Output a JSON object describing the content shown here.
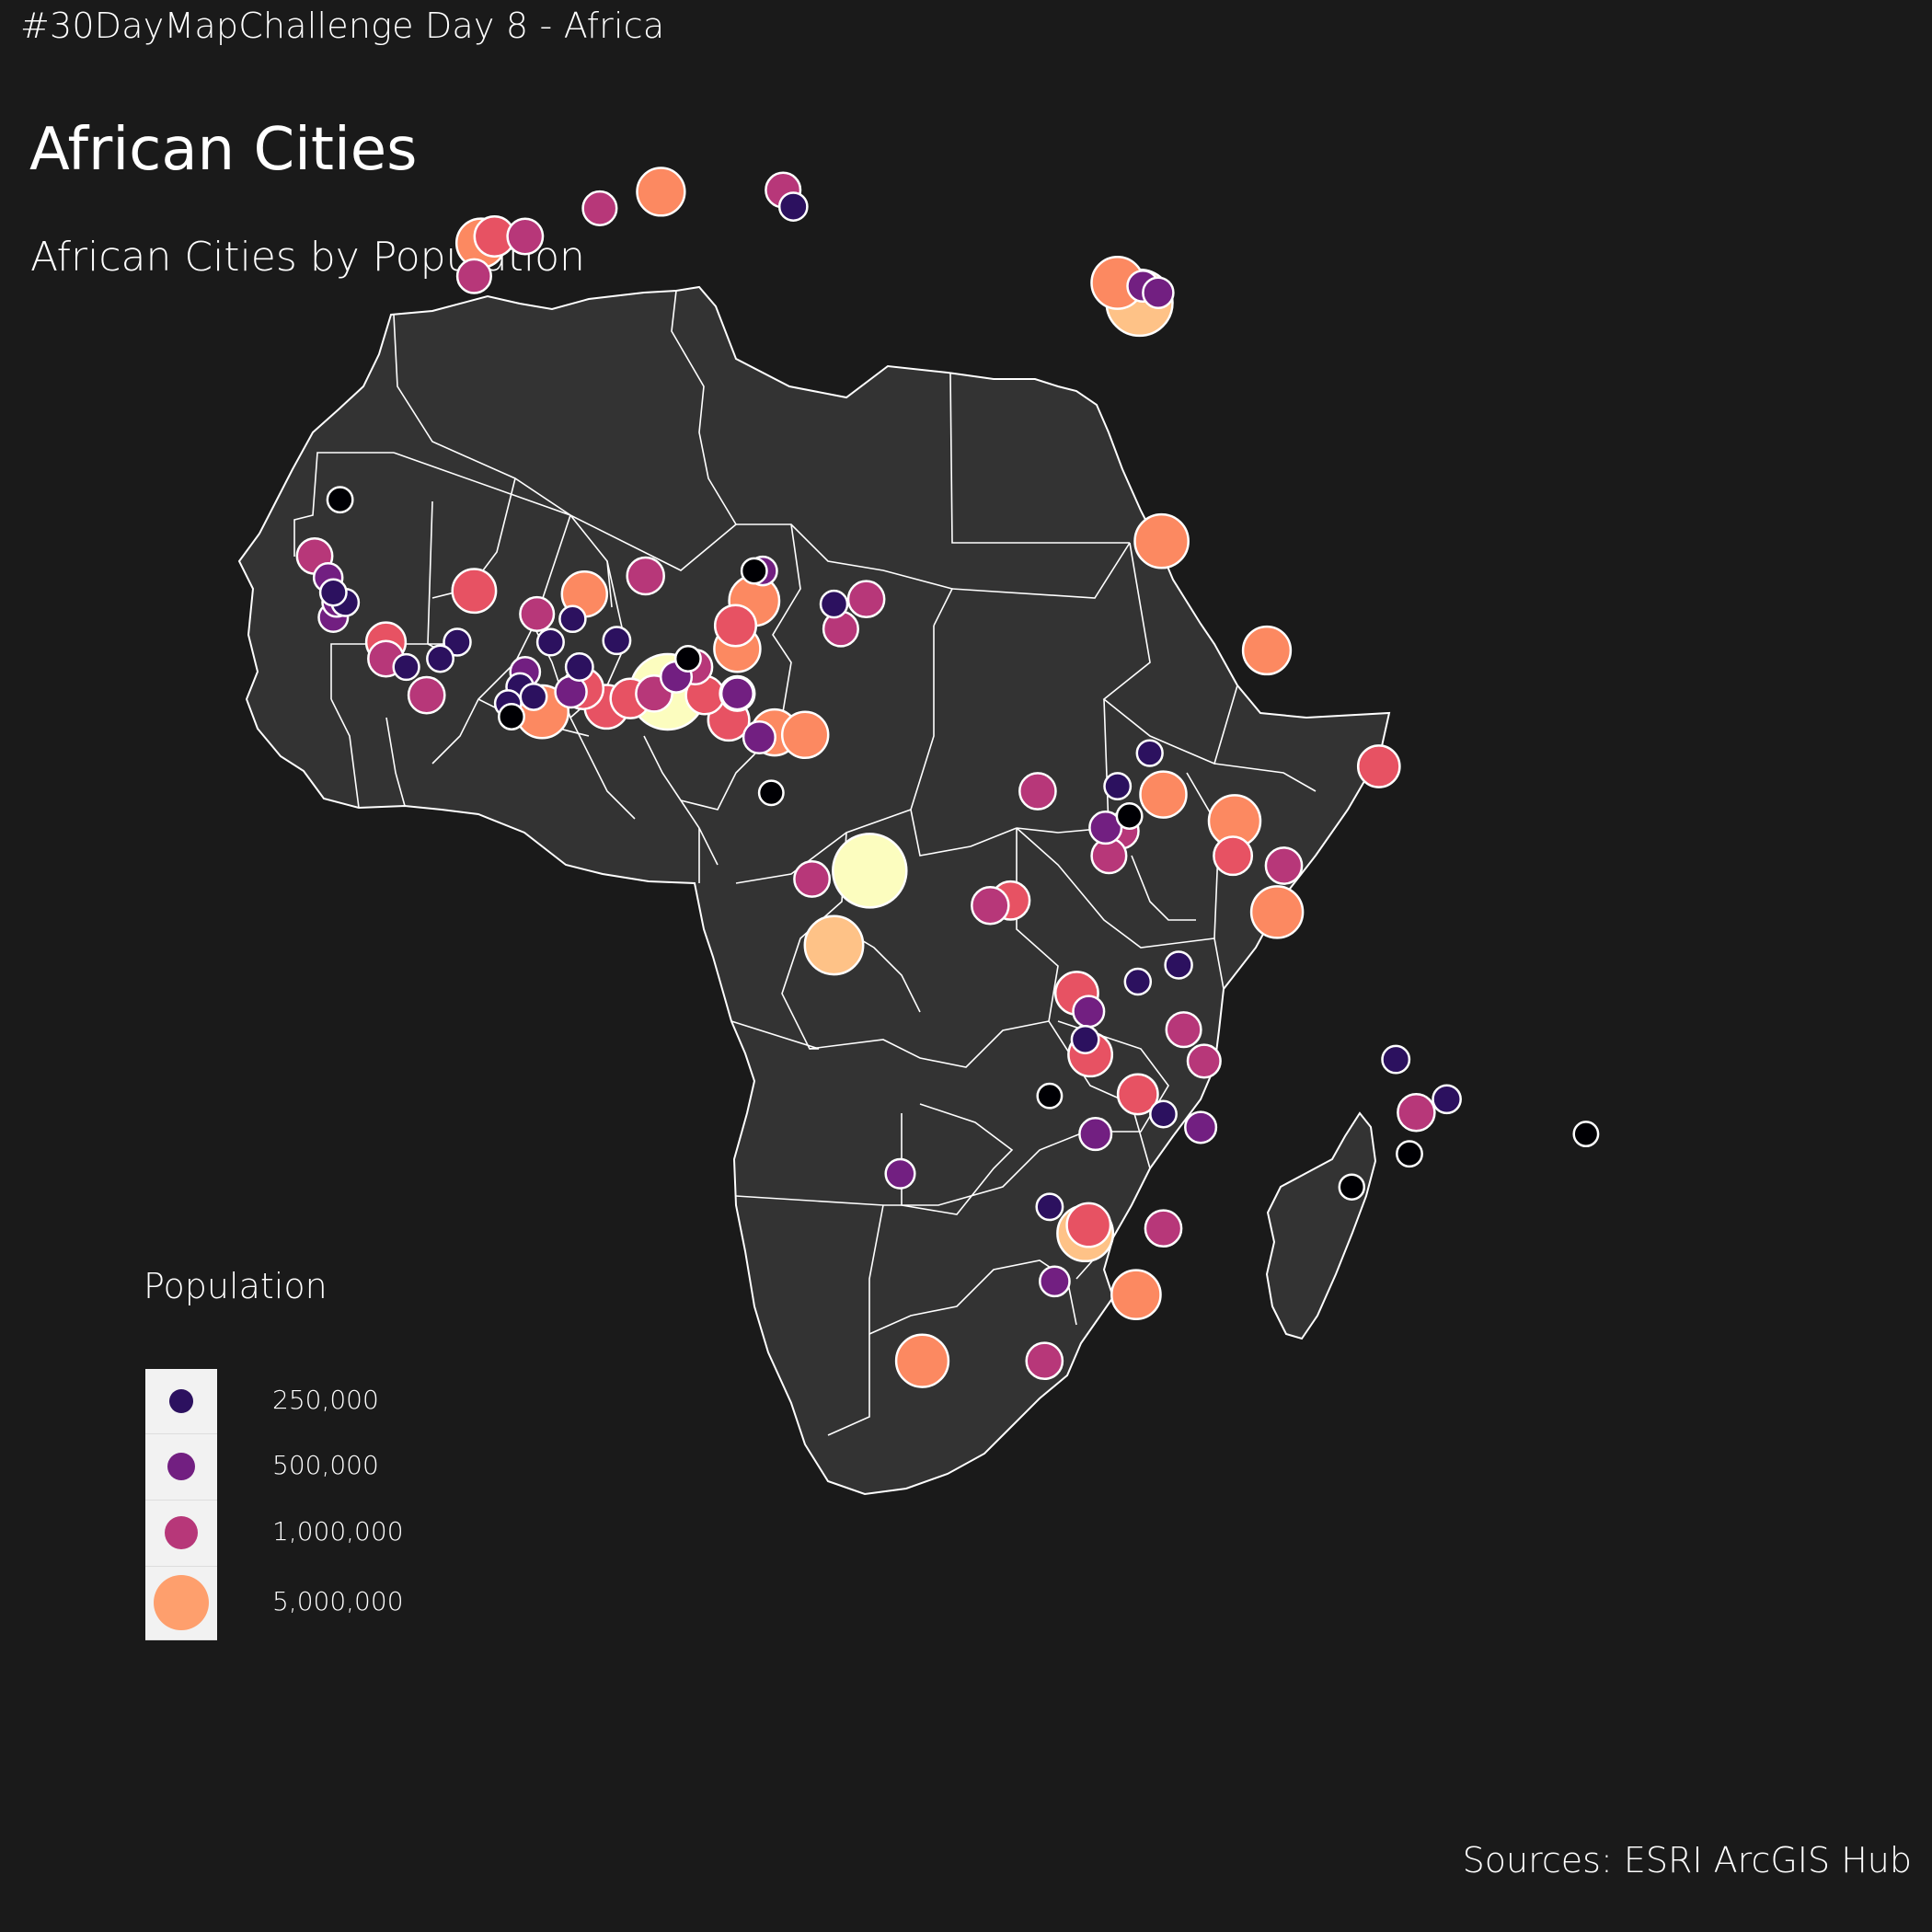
{
  "header": {
    "challenge": "#30DayMapChallenge Day 8 - Africa",
    "title": "African Cities",
    "subtitle": "African Cities by Population"
  },
  "legend": {
    "title": "Population",
    "items": [
      {
        "label": "250,000",
        "value": 250000,
        "color": "#2c115f"
      },
      {
        "label": "500,000",
        "value": 500000,
        "color": "#721f81"
      },
      {
        "label": "1,000,000",
        "value": 1000000,
        "color": "#b73779"
      },
      {
        "label": "5,000,000",
        "value": 5000000,
        "color": "#fe9f6d"
      }
    ]
  },
  "footer": {
    "source": "Sources: ESRI ArcGIS Hub"
  },
  "colors": {
    "background": "#1a1a1a",
    "land": "#333333",
    "border": "#ffffff",
    "scale": [
      "#000004",
      "#2c115f",
      "#721f81",
      "#b73779",
      "#e75263",
      "#fc8961",
      "#fec287",
      "#fcfdbf"
    ]
  },
  "chart_data": {
    "type": "scatter",
    "encoding": "proportional symbols, color and size by population (magma scale)",
    "points": [
      {
        "lon": 31.2,
        "lat": 30.0,
        "pop": 9500000
      },
      {
        "lon": 29.9,
        "lat": 31.2,
        "pop": 4500000
      },
      {
        "lon": 31.4,
        "lat": 31.0,
        "pop": 600000
      },
      {
        "lon": 32.3,
        "lat": 30.6,
        "pop": 550000
      },
      {
        "lon": 32.5,
        "lat": 15.6,
        "pop": 5000000
      },
      {
        "lon": 38.7,
        "lat": 9.0,
        "pop": 3400000
      },
      {
        "lon": 45.3,
        "lat": 2.0,
        "pop": 2100000
      },
      {
        "lon": 36.8,
        "lat": -1.3,
        "pop": 4400000
      },
      {
        "lon": 39.7,
        "lat": -4.0,
        "pop": 1200000
      },
      {
        "lon": 39.3,
        "lat": -6.8,
        "pop": 4400000
      },
      {
        "lon": 36.7,
        "lat": -3.4,
        "pop": 1500000
      },
      {
        "lon": 32.6,
        "lat": 0.3,
        "pop": 3000000
      },
      {
        "lon": 30.1,
        "lat": -1.9,
        "pop": 1100000
      },
      {
        "lon": 29.2,
        "lat": -1.7,
        "pop": 700000
      },
      {
        "lon": 29.4,
        "lat": -3.4,
        "pop": 1000000
      },
      {
        "lon": 29.9,
        "lat": 0.8,
        "pop": 250000
      },
      {
        "lon": 30.6,
        "lat": -1.0,
        "pop": 200000
      },
      {
        "lon": 31.8,
        "lat": 2.8,
        "pop": 220000
      },
      {
        "lon": 15.3,
        "lat": -4.3,
        "pop": 13000000
      },
      {
        "lon": 13.2,
        "lat": -8.8,
        "pop": 6500000
      },
      {
        "lon": 11.9,
        "lat": -4.8,
        "pop": 1100000
      },
      {
        "lon": 25.2,
        "lat": 0.5,
        "pop": 1200000
      },
      {
        "lon": 23.6,
        "lat": -6.1,
        "pop": 1500000
      },
      {
        "lon": 22.4,
        "lat": -6.4,
        "pop": 1300000
      },
      {
        "lon": 27.5,
        "lat": -11.7,
        "pop": 2300000
      },
      {
        "lon": 28.2,
        "lat": -12.8,
        "pop": 600000
      },
      {
        "lon": 28.3,
        "lat": -15.4,
        "pop": 2500000
      },
      {
        "lon": 28.0,
        "lat": -14.5,
        "pop": 300000
      },
      {
        "lon": 31.1,
        "lat": -17.8,
        "pop": 1800000
      },
      {
        "lon": 28.6,
        "lat": -20.2,
        "pop": 700000
      },
      {
        "lon": 32.6,
        "lat": -25.9,
        "pop": 1200000
      },
      {
        "lon": 33.8,
        "lat": -13.9,
        "pop": 1000000
      },
      {
        "lon": 35.0,
        "lat": -15.8,
        "pop": 800000
      },
      {
        "lon": 34.8,
        "lat": -19.8,
        "pop": 600000
      },
      {
        "lon": 31.1,
        "lat": -11.0,
        "pop": 230000
      },
      {
        "lon": 33.5,
        "lat": -10.0,
        "pop": 280000
      },
      {
        "lon": 32.6,
        "lat": -19.0,
        "pop": 250000
      },
      {
        "lon": 25.9,
        "lat": -17.9,
        "pop": 150000
      },
      {
        "lon": 28.0,
        "lat": -26.2,
        "pop": 5600000
      },
      {
        "lon": 28.2,
        "lat": -25.7,
        "pop": 2500000
      },
      {
        "lon": 31.0,
        "lat": -29.9,
        "pop": 3700000
      },
      {
        "lon": 18.4,
        "lat": -33.9,
        "pop": 4600000
      },
      {
        "lon": 25.6,
        "lat": -33.9,
        "pop": 1200000
      },
      {
        "lon": 26.2,
        "lat": -29.1,
        "pop": 500000
      },
      {
        "lon": 25.9,
        "lat": -24.6,
        "pop": 250000
      },
      {
        "lon": 17.1,
        "lat": -22.6,
        "pop": 450000
      },
      {
        "lon": 47.5,
        "lat": -18.9,
        "pop": 1300000
      },
      {
        "lon": 49.3,
        "lat": -18.1,
        "pop": 350000
      },
      {
        "lon": 46.3,
        "lat": -15.7,
        "pop": 300000
      },
      {
        "lon": 47.1,
        "lat": -21.4,
        "pop": 200000
      },
      {
        "lon": 43.7,
        "lat": -23.4,
        "pop": 180000
      },
      {
        "lon": 57.5,
        "lat": -20.2,
        "pop": 150000
      },
      {
        "lon": 3.4,
        "lat": 6.5,
        "pop": 14000000
      },
      {
        "lon": 3.9,
        "lat": 7.4,
        "pop": 600000
      },
      {
        "lon": 7.5,
        "lat": 9.1,
        "pop": 3000000
      },
      {
        "lon": 8.5,
        "lat": 12.0,
        "pop": 4000000
      },
      {
        "lon": 7.4,
        "lat": 10.5,
        "pop": 2000000
      },
      {
        "lon": 7.0,
        "lat": 4.8,
        "pop": 2000000
      },
      {
        "lon": 7.5,
        "lat": 6.4,
        "pop": 1000000
      },
      {
        "lon": 5.6,
        "lat": 6.3,
        "pop": 1500000
      },
      {
        "lon": 5.0,
        "lat": 8.0,
        "pop": 1000000
      },
      {
        "lon": 8.5,
        "lat": 13.8,
        "pop": 200000
      },
      {
        "lon": 2.6,
        "lat": 6.4,
        "pop": 1200000
      },
      {
        "lon": 4.6,
        "lat": 8.5,
        "pop": 200000
      },
      {
        "lon": 9.7,
        "lat": 4.05,
        "pop": 3000000
      },
      {
        "lon": 11.5,
        "lat": 3.9,
        "pop": 3000000
      },
      {
        "lon": 13.6,
        "lat": 10.3,
        "pop": 1000000
      },
      {
        "lon": 15.1,
        "lat": 12.1,
        "pop": 1200000
      },
      {
        "lon": 13.2,
        "lat": 11.8,
        "pop": 280000
      },
      {
        "lon": 8.8,
        "lat": 3.75,
        "pop": 700000
      },
      {
        "lon": 9.5,
        "lat": 0.4,
        "pop": 150000
      },
      {
        "lon": 2.1,
        "lat": 13.5,
        "pop": 1300000
      },
      {
        "lon": 7.5,
        "lat": 6.4,
        "pop": 700000
      },
      {
        "lon": 9.0,
        "lat": 13.8,
        "pop": 400000
      },
      {
        "lon": -1.5,
        "lat": 12.4,
        "pop": 2800000
      },
      {
        "lon": -4.3,
        "lat": 11.2,
        "pop": 900000
      },
      {
        "lon": -8.0,
        "lat": 12.6,
        "pop": 2500000
      },
      {
        "lon": -4.0,
        "lat": 5.3,
        "pop": 4700000
      },
      {
        "lon": -5.3,
        "lat": 6.8,
        "pop": 300000
      },
      {
        "lon": -5.0,
        "lat": 7.7,
        "pop": 500000
      },
      {
        "lon": -0.2,
        "lat": 5.6,
        "pop": 2500000
      },
      {
        "lon": -1.6,
        "lat": 6.7,
        "pop": 2000000
      },
      {
        "lon": 1.2,
        "lat": 6.1,
        "pop": 1700000
      },
      {
        "lon": -13.2,
        "lat": 9.5,
        "pop": 1700000
      },
      {
        "lon": -13.2,
        "lat": 8.5,
        "pop": 1100000
      },
      {
        "lon": -10.8,
        "lat": 6.3,
        "pop": 1200000
      },
      {
        "lon": -17.4,
        "lat": 14.7,
        "pop": 1100000
      },
      {
        "lon": -16.6,
        "lat": 13.4,
        "pop": 400000
      },
      {
        "lon": -16.3,
        "lat": 12.5,
        "pop": 250000
      },
      {
        "lon": -16.1,
        "lat": 11.9,
        "pop": 400000
      },
      {
        "lon": -15.6,
        "lat": 11.9,
        "pop": 300000
      },
      {
        "lon": -16.3,
        "lat": 11.0,
        "pop": 450000
      },
      {
        "lon": -15.9,
        "lat": 18.1,
        "pop": 200000
      },
      {
        "lon": -7.6,
        "lat": 33.6,
        "pop": 3700000
      },
      {
        "lon": -6.8,
        "lat": 34.0,
        "pop": 1800000
      },
      {
        "lon": -5.0,
        "lat": 34.0,
        "pop": 1100000
      },
      {
        "lon": -8.0,
        "lat": 31.6,
        "pop": 900000
      },
      {
        "lon": -0.6,
        "lat": 35.7,
        "pop": 900000
      },
      {
        "lon": 3.0,
        "lat": 36.7,
        "pop": 3400000
      },
      {
        "lon": 10.2,
        "lat": 36.8,
        "pop": 1000000
      },
      {
        "lon": 10.8,
        "lat": 35.8,
        "pop": 350000
      },
      {
        "lon": -9.0,
        "lat": 9.5,
        "pop": 280000
      },
      {
        "lon": -10.0,
        "lat": 8.5,
        "pop": 250000
      },
      {
        "lon": -2.2,
        "lat": 10.9,
        "pop": 230000
      },
      {
        "lon": -3.5,
        "lat": 9.5,
        "pop": 260000
      },
      {
        "lon": -1.8,
        "lat": 8.0,
        "pop": 300000
      },
      {
        "lon": -6.0,
        "lat": 5.8,
        "pop": 250000
      },
      {
        "lon": -5.8,
        "lat": 5.0,
        "pop": 200000
      },
      {
        "lon": -4.5,
        "lat": 6.2,
        "pop": 250000
      },
      {
        "lon": -2.3,
        "lat": 6.5,
        "pop": 650000
      },
      {
        "lon": 0.4,
        "lat": 9.6,
        "pop": 300000
      },
      {
        "lon": -12.0,
        "lat": 8.0,
        "pop": 220000
      }
    ]
  }
}
